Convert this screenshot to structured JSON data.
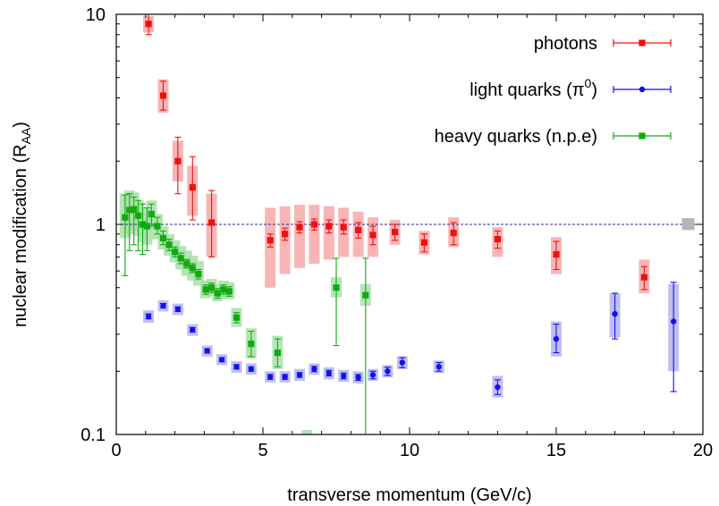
{
  "chart_data": {
    "type": "scatter",
    "xlabel": "transverse momentum (GeV/c)",
    "ylabel_main": "nuclear modification (R",
    "ylabel_sub": "AA",
    "ylabel_close": ")",
    "xlim": [
      0,
      20
    ],
    "ylim": [
      0.1,
      10
    ],
    "yscale": "log",
    "grid": false,
    "legend_position": "top-right",
    "x_ticks": [
      {
        "value": 0,
        "label": "0"
      },
      {
        "value": 5,
        "label": "5"
      },
      {
        "value": 10,
        "label": "10"
      },
      {
        "value": 15,
        "label": "15"
      },
      {
        "value": 20,
        "label": "20"
      }
    ],
    "y_ticks": [
      {
        "value": 0.1,
        "label": "0.1"
      },
      {
        "value": 1,
        "label": "1"
      },
      {
        "value": 10,
        "label": "10"
      }
    ],
    "reference_line": 1,
    "reference_box": {
      "x": 19.5,
      "low": 0.94,
      "high": 1.07,
      "color": "#b4b4b4"
    },
    "series": [
      {
        "name": "photons",
        "legend_text": "photons",
        "legend_sup": "",
        "legend_suffix": "",
        "marker": "square",
        "color": "#ee1111",
        "band_color": "#f7a8a8",
        "points": [
          {
            "x": 1.1,
            "y": 9.0,
            "elo": 8.0,
            "ehi": 10.2,
            "blo": 8.2,
            "bhi": 9.8
          },
          {
            "x": 1.6,
            "y": 4.1,
            "elo": 3.5,
            "ehi": 4.8,
            "blo": 3.4,
            "bhi": 4.9
          },
          {
            "x": 2.1,
            "y": 2.0,
            "elo": 1.4,
            "ehi": 2.6,
            "blo": 1.6,
            "bhi": 2.5
          },
          {
            "x": 2.6,
            "y": 1.5,
            "elo": 1.05,
            "ehi": 2.1,
            "blo": 1.1,
            "bhi": 1.9
          },
          {
            "x": 3.25,
            "y": 1.02,
            "elo": 0.7,
            "ehi": 1.45,
            "blo": 0.7,
            "bhi": 1.4
          },
          {
            "x": 5.25,
            "y": 0.84,
            "elo": 0.78,
            "ehi": 0.9,
            "blo": 0.5,
            "bhi": 1.2
          },
          {
            "x": 5.75,
            "y": 0.9,
            "elo": 0.84,
            "ehi": 0.96,
            "blo": 0.58,
            "bhi": 1.22
          },
          {
            "x": 6.25,
            "y": 0.97,
            "elo": 0.91,
            "ehi": 1.03,
            "blo": 0.62,
            "bhi": 1.24
          },
          {
            "x": 6.75,
            "y": 1.0,
            "elo": 0.94,
            "ehi": 1.06,
            "blo": 0.65,
            "bhi": 1.24
          },
          {
            "x": 7.25,
            "y": 0.98,
            "elo": 0.91,
            "ehi": 1.05,
            "blo": 0.68,
            "bhi": 1.22
          },
          {
            "x": 7.75,
            "y": 0.97,
            "elo": 0.9,
            "ehi": 1.05,
            "blo": 0.7,
            "bhi": 1.2
          },
          {
            "x": 8.25,
            "y": 0.94,
            "elo": 0.86,
            "ehi": 1.02,
            "blo": 0.7,
            "bhi": 1.15
          },
          {
            "x": 8.75,
            "y": 0.89,
            "elo": 0.8,
            "ehi": 0.98,
            "blo": 0.7,
            "bhi": 1.08
          },
          {
            "x": 9.5,
            "y": 0.92,
            "elo": 0.84,
            "ehi": 1.0,
            "blo": 0.8,
            "bhi": 1.05
          },
          {
            "x": 10.5,
            "y": 0.82,
            "elo": 0.74,
            "ehi": 0.9,
            "blo": 0.72,
            "bhi": 0.93
          },
          {
            "x": 11.5,
            "y": 0.91,
            "elo": 0.8,
            "ehi": 1.02,
            "blo": 0.78,
            "bhi": 1.08
          },
          {
            "x": 13.0,
            "y": 0.85,
            "elo": 0.77,
            "ehi": 0.93,
            "blo": 0.7,
            "bhi": 0.97
          },
          {
            "x": 15.0,
            "y": 0.72,
            "elo": 0.61,
            "ehi": 0.83,
            "blo": 0.58,
            "bhi": 0.87
          },
          {
            "x": 18.0,
            "y": 0.56,
            "elo": 0.49,
            "ehi": 0.63,
            "blo": 0.47,
            "bhi": 0.68
          }
        ]
      },
      {
        "name": "light quarks (π0)",
        "legend_text": "light quarks (π",
        "legend_sup": "0",
        "legend_suffix": ")",
        "marker": "circle",
        "color": "#1111ee",
        "band_color": "#b4b4f0",
        "points": [
          {
            "x": 1.1,
            "y": 0.365,
            "elo": 0.355,
            "ehi": 0.375,
            "blo": 0.34,
            "bhi": 0.39
          },
          {
            "x": 1.6,
            "y": 0.41,
            "elo": 0.4,
            "ehi": 0.42,
            "blo": 0.385,
            "bhi": 0.435
          },
          {
            "x": 2.1,
            "y": 0.395,
            "elo": 0.385,
            "ehi": 0.405,
            "blo": 0.37,
            "bhi": 0.42
          },
          {
            "x": 2.6,
            "y": 0.315,
            "elo": 0.307,
            "ehi": 0.323,
            "blo": 0.295,
            "bhi": 0.335
          },
          {
            "x": 3.1,
            "y": 0.25,
            "elo": 0.244,
            "ehi": 0.256,
            "blo": 0.235,
            "bhi": 0.265
          },
          {
            "x": 3.6,
            "y": 0.227,
            "elo": 0.222,
            "ehi": 0.232,
            "blo": 0.214,
            "bhi": 0.241
          },
          {
            "x": 4.1,
            "y": 0.21,
            "elo": 0.205,
            "ehi": 0.215,
            "blo": 0.197,
            "bhi": 0.223
          },
          {
            "x": 4.6,
            "y": 0.205,
            "elo": 0.2,
            "ehi": 0.21,
            "blo": 0.193,
            "bhi": 0.218
          },
          {
            "x": 5.25,
            "y": 0.188,
            "elo": 0.183,
            "ehi": 0.193,
            "blo": 0.177,
            "bhi": 0.2
          },
          {
            "x": 5.75,
            "y": 0.188,
            "elo": 0.183,
            "ehi": 0.193,
            "blo": 0.177,
            "bhi": 0.2
          },
          {
            "x": 6.25,
            "y": 0.192,
            "elo": 0.187,
            "ehi": 0.197,
            "blo": 0.18,
            "bhi": 0.205
          },
          {
            "x": 6.75,
            "y": 0.205,
            "elo": 0.199,
            "ehi": 0.211,
            "blo": 0.192,
            "bhi": 0.218
          },
          {
            "x": 7.25,
            "y": 0.196,
            "elo": 0.19,
            "ehi": 0.202,
            "blo": 0.183,
            "bhi": 0.209
          },
          {
            "x": 7.75,
            "y": 0.19,
            "elo": 0.184,
            "ehi": 0.196,
            "blo": 0.178,
            "bhi": 0.203
          },
          {
            "x": 8.25,
            "y": 0.187,
            "elo": 0.181,
            "ehi": 0.193,
            "blo": 0.175,
            "bhi": 0.2
          },
          {
            "x": 8.75,
            "y": 0.192,
            "elo": 0.184,
            "ehi": 0.2,
            "blo": 0.18,
            "bhi": 0.205
          },
          {
            "x": 9.25,
            "y": 0.2,
            "elo": 0.191,
            "ehi": 0.209,
            "blo": 0.187,
            "bhi": 0.214
          },
          {
            "x": 9.75,
            "y": 0.22,
            "elo": 0.208,
            "ehi": 0.232,
            "blo": 0.205,
            "bhi": 0.236
          },
          {
            "x": 11.0,
            "y": 0.21,
            "elo": 0.2,
            "ehi": 0.22,
            "blo": 0.196,
            "bhi": 0.225
          },
          {
            "x": 13.0,
            "y": 0.168,
            "elo": 0.155,
            "ehi": 0.182,
            "blo": 0.15,
            "bhi": 0.19
          },
          {
            "x": 15.0,
            "y": 0.285,
            "elo": 0.245,
            "ehi": 0.335,
            "blo": 0.235,
            "bhi": 0.345
          },
          {
            "x": 17.0,
            "y": 0.375,
            "elo": 0.285,
            "ehi": 0.47,
            "blo": 0.29,
            "bhi": 0.47
          },
          {
            "x": 19.0,
            "y": 0.345,
            "elo": 0.16,
            "ehi": 0.53,
            "blo": 0.2,
            "bhi": 0.52
          }
        ]
      },
      {
        "name": "heavy quarks (n.p.e)",
        "legend_text": "heavy quarks (n.p.e)",
        "legend_sup": "",
        "legend_suffix": "",
        "marker": "square",
        "color": "#11aa11",
        "band_color": "#a8e0a8",
        "points": [
          {
            "x": 0.3,
            "y": 1.08,
            "elo": 0.57,
            "ehi": 1.38,
            "blo": 0.86,
            "bhi": 1.4
          },
          {
            "x": 0.45,
            "y": 1.17,
            "elo": 0.75,
            "ehi": 1.4,
            "blo": 0.9,
            "bhi": 1.45
          },
          {
            "x": 0.6,
            "y": 1.18,
            "elo": 0.8,
            "ehi": 1.35,
            "blo": 0.92,
            "bhi": 1.42
          },
          {
            "x": 0.75,
            "y": 1.1,
            "elo": 0.75,
            "ehi": 1.3,
            "blo": 0.88,
            "bhi": 1.3
          },
          {
            "x": 0.9,
            "y": 1.0,
            "elo": 0.72,
            "ehi": 1.25,
            "blo": 0.82,
            "bhi": 1.2
          },
          {
            "x": 1.05,
            "y": 0.98,
            "elo": 0.75,
            "ehi": 1.2,
            "blo": 0.8,
            "bhi": 1.15
          },
          {
            "x": 1.2,
            "y": 1.12,
            "elo": 0.98,
            "ehi": 1.25,
            "blo": 0.95,
            "bhi": 1.3
          },
          {
            "x": 1.4,
            "y": 0.98,
            "elo": 0.9,
            "ehi": 1.08,
            "blo": 0.85,
            "bhi": 1.12
          },
          {
            "x": 1.6,
            "y": 0.86,
            "elo": 0.8,
            "ehi": 0.93,
            "blo": 0.76,
            "bhi": 0.98
          },
          {
            "x": 1.8,
            "y": 0.8,
            "elo": 0.75,
            "ehi": 0.85,
            "blo": 0.71,
            "bhi": 0.9
          },
          {
            "x": 2.0,
            "y": 0.74,
            "elo": 0.7,
            "ehi": 0.78,
            "blo": 0.66,
            "bhi": 0.84
          },
          {
            "x": 2.2,
            "y": 0.69,
            "elo": 0.65,
            "ehi": 0.73,
            "blo": 0.61,
            "bhi": 0.79
          },
          {
            "x": 2.4,
            "y": 0.65,
            "elo": 0.62,
            "ehi": 0.68,
            "blo": 0.57,
            "bhi": 0.75
          },
          {
            "x": 2.6,
            "y": 0.62,
            "elo": 0.59,
            "ehi": 0.65,
            "blo": 0.54,
            "bhi": 0.71
          },
          {
            "x": 2.8,
            "y": 0.58,
            "elo": 0.55,
            "ehi": 0.61,
            "blo": 0.51,
            "bhi": 0.67
          },
          {
            "x": 3.05,
            "y": 0.49,
            "elo": 0.465,
            "ehi": 0.515,
            "blo": 0.445,
            "bhi": 0.54
          },
          {
            "x": 3.25,
            "y": 0.5,
            "elo": 0.475,
            "ehi": 0.525,
            "blo": 0.455,
            "bhi": 0.55
          },
          {
            "x": 3.45,
            "y": 0.47,
            "elo": 0.445,
            "ehi": 0.495,
            "blo": 0.43,
            "bhi": 0.52
          },
          {
            "x": 3.65,
            "y": 0.49,
            "elo": 0.465,
            "ehi": 0.515,
            "blo": 0.445,
            "bhi": 0.54
          },
          {
            "x": 3.85,
            "y": 0.48,
            "elo": 0.455,
            "ehi": 0.505,
            "blo": 0.44,
            "bhi": 0.53
          },
          {
            "x": 4.1,
            "y": 0.36,
            "elo": 0.34,
            "ehi": 0.38,
            "blo": 0.325,
            "bhi": 0.4
          },
          {
            "x": 4.6,
            "y": 0.27,
            "elo": 0.235,
            "ehi": 0.31,
            "blo": 0.23,
            "bhi": 0.32
          },
          {
            "x": 5.5,
            "y": 0.245,
            "elo": 0.21,
            "ehi": 0.285,
            "blo": 0.205,
            "bhi": 0.295
          },
          {
            "x": 6.5,
            "y": 0.08,
            "elo": 0.06,
            "ehi": 0.1,
            "blo": 0.06,
            "bhi": 0.105
          },
          {
            "x": 7.5,
            "y": 0.5,
            "elo": 0.265,
            "ehi": 0.69,
            "blo": 0.45,
            "bhi": 0.56
          },
          {
            "x": 8.5,
            "y": 0.46,
            "elo": 0.05,
            "ehi": 0.69,
            "blo": 0.41,
            "bhi": 0.52
          }
        ]
      }
    ]
  }
}
